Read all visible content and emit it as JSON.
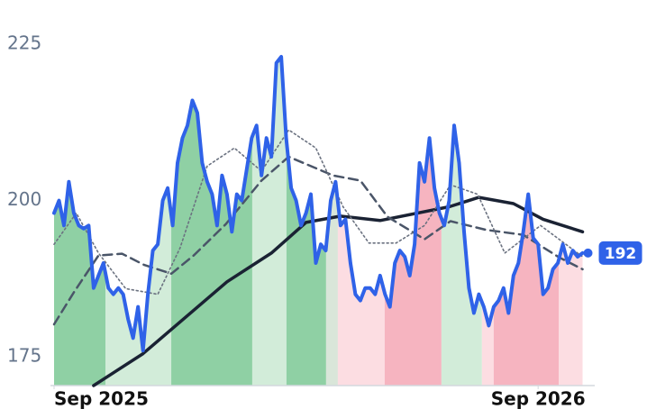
{
  "chart_data": {
    "type": "line",
    "xlim": [
      0,
      432
    ],
    "xticks": [
      {
        "value": 0,
        "label": "Sep 2025"
      },
      {
        "value": 392,
        "label": "Sep 2026"
      }
    ],
    "ylim": [
      170.4,
      228
    ],
    "yticks": [
      175,
      200,
      225
    ],
    "x": [
      0,
      4,
      8,
      12,
      16,
      20,
      24,
      28,
      32,
      36,
      40,
      44,
      48,
      52,
      56,
      60,
      64,
      68,
      72,
      76,
      80,
      84,
      88,
      92,
      96,
      100,
      104,
      108,
      112,
      116,
      120,
      124,
      128,
      132,
      136,
      140,
      144,
      148,
      152,
      156,
      160,
      164,
      168,
      172,
      176,
      180,
      184,
      188,
      192,
      196,
      200,
      204,
      208,
      212,
      216,
      220,
      224,
      228,
      232,
      236,
      240,
      244,
      248,
      252,
      256,
      260,
      264,
      268,
      272,
      276,
      280,
      284,
      288,
      292,
      296,
      300,
      304,
      308,
      312,
      316,
      320,
      324,
      328,
      332,
      336,
      340,
      344,
      348,
      352,
      356,
      360,
      364,
      368,
      372,
      376,
      380,
      384,
      388,
      392,
      396,
      400,
      404,
      408,
      412,
      416,
      420,
      424,
      428
    ],
    "series": [
      {
        "color": "#2f62e8",
        "values": [
          198,
          200,
          196,
          203,
          198,
          196,
          195.5,
          196,
          186,
          188,
          190,
          186,
          185,
          186,
          185,
          181,
          178,
          183,
          176,
          185,
          192,
          193,
          200,
          202,
          196,
          206,
          210,
          212,
          216,
          214,
          206,
          203,
          201,
          196,
          204,
          201,
          195,
          201,
          200,
          205,
          210,
          212,
          204,
          210,
          207,
          222,
          223,
          210,
          202,
          200,
          196,
          198,
          201,
          190,
          193,
          192,
          200,
          203,
          196,
          197,
          190,
          185,
          184,
          186,
          186,
          185,
          188,
          185,
          183,
          190,
          192,
          191,
          188,
          193,
          206,
          203,
          210,
          202,
          198,
          196,
          200,
          212,
          206,
          195,
          186,
          182,
          185,
          183,
          180,
          183,
          184,
          186,
          182,
          188,
          190,
          195,
          201,
          194,
          193,
          185,
          186,
          189,
          190,
          193,
          190,
          192,
          191,
          191.6
        ],
        "value_labels": [
          null,
          null,
          null,
          null,
          null,
          null,
          null,
          null,
          null,
          null,
          null,
          null,
          null,
          null,
          null,
          null,
          null,
          null,
          null,
          null,
          null,
          null,
          null,
          null,
          null,
          null,
          null,
          null,
          null,
          null,
          null,
          null,
          null,
          null,
          null,
          null,
          null,
          null,
          null,
          null,
          null,
          null,
          null,
          null,
          null,
          null,
          null,
          null,
          null,
          null,
          null,
          null,
          null,
          null,
          null,
          null,
          null,
          null,
          null,
          null,
          null,
          null,
          null,
          null,
          null,
          null,
          null,
          null,
          null,
          null,
          null,
          null,
          null,
          null,
          null,
          null,
          null,
          null,
          null,
          null,
          null,
          null,
          null,
          null,
          null,
          null,
          null,
          null,
          null,
          null,
          null,
          null,
          null,
          null,
          null,
          null,
          null,
          null,
          null,
          null,
          null,
          null,
          null,
          null,
          null,
          null,
          null,
          "192"
        ]
      },
      {
        "color": "#1a2233",
        "style": "solid",
        "x": [
          32,
          72,
          140,
          176,
          204,
          232,
          264,
          320,
          344,
          372,
          396,
          428
        ],
        "values": [
          170.4,
          175.5,
          187,
          191.6,
          196.5,
          197.5,
          196.8,
          199,
          200.5,
          199.5,
          197,
          195
        ]
      },
      {
        "color": "#4a5568",
        "style": "dashed",
        "x": [
          0,
          16,
          36,
          55,
          73,
          95,
          113,
          139,
          168,
          190,
          208,
          226,
          248,
          270,
          300,
          321,
          350,
          380,
          409,
          428
        ],
        "values": [
          180.2,
          185.3,
          191.2,
          191.5,
          189.7,
          188.3,
          191.2,
          196.2,
          203.2,
          207,
          205.5,
          204,
          203.2,
          197.4,
          193.8,
          196.7,
          195.3,
          194.5,
          190.9,
          189
        ]
      },
      {
        "color": "#6b7280",
        "style": "dotted",
        "x": [
          0,
          18,
          36,
          58,
          84,
          102,
          124,
          146,
          168,
          190,
          212,
          234,
          255,
          277,
          300,
          321,
          343,
          365,
          394,
          428
        ],
        "values": [
          193,
          198,
          191.6,
          185.9,
          185,
          192.4,
          205.5,
          208.4,
          204.7,
          211.3,
          208.4,
          199,
          193.2,
          193.2,
          196,
          202.5,
          201,
          191.6,
          196,
          191
        ]
      }
    ],
    "bands": [
      {
        "x0": 0,
        "x1": 41.6,
        "color": "#8fd0a4"
      },
      {
        "x0": 41.6,
        "x1": 94.9,
        "color": "#d2ecd9"
      },
      {
        "x0": 94.9,
        "x1": 160.5,
        "color": "#8fd0a4"
      },
      {
        "x0": 160.5,
        "x1": 188.2,
        "color": "#d2ecd9"
      },
      {
        "x0": 188.2,
        "x1": 220.3,
        "color": "#8fd0a4"
      },
      {
        "x0": 220.3,
        "x1": 229.8,
        "color": "#d9e6d9"
      },
      {
        "x0": 229.8,
        "x1": 267.7,
        "color": "#fcdde2"
      },
      {
        "x0": 267.7,
        "x1": 313.7,
        "color": "#f6b4c0"
      },
      {
        "x0": 313.7,
        "x1": 346.5,
        "color": "#d2ecd9"
      },
      {
        "x0": 346.5,
        "x1": 356,
        "color": "#fcdde2"
      },
      {
        "x0": 356,
        "x1": 408.8,
        "color": "#f6b4c0"
      },
      {
        "x0": 408.8,
        "x1": 432,
        "color": "#fcdde2"
      }
    ]
  }
}
